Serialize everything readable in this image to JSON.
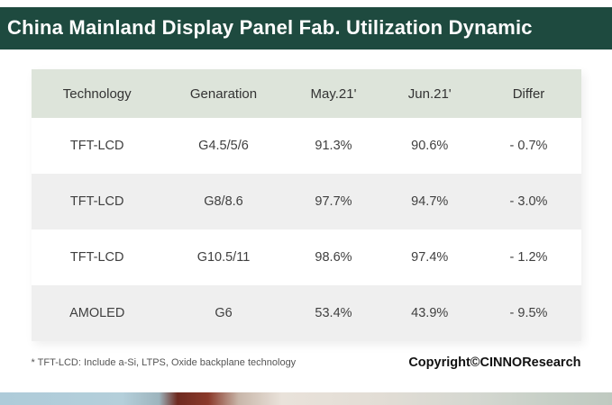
{
  "colors": {
    "title_bar_bg": "#1e4a3f",
    "title_text": "#ffffff",
    "header_row_bg": "#dde4da",
    "alt_row_bg": "#efefef",
    "body_text": "#3f3f3f"
  },
  "title": "China Mainland Display Panel Fab. Utilization Dynamic",
  "table": {
    "headers": [
      "Technology",
      "Genaration",
      "May.21'",
      "Jun.21'",
      "Differ"
    ],
    "rows": [
      [
        "TFT-LCD",
        "G4.5/5/6",
        "91.3%",
        "90.6%",
        "- 0.7%"
      ],
      [
        "TFT-LCD",
        "G8/8.6",
        "97.7%",
        "94.7%",
        "- 3.0%"
      ],
      [
        "TFT-LCD",
        "G10.5/11",
        "98.6%",
        "97.4%",
        "- 1.2%"
      ],
      [
        "AMOLED",
        "G6",
        "53.4%",
        "43.9%",
        "- 9.5%"
      ]
    ]
  },
  "footer": {
    "note": "* TFT-LCD: Include a-Si, LTPS, Oxide backplane technology",
    "copyright": "Copyright©CINNOResearch"
  },
  "chart_data": {
    "type": "table",
    "title": "China Mainland Display Panel Fab. Utilization Dynamic",
    "columns": [
      "Technology",
      "Genaration",
      "May.21'",
      "Jun.21'",
      "Differ"
    ],
    "rows": [
      {
        "technology": "TFT-LCD",
        "generation": "G4.5/5/6",
        "may_21": 91.3,
        "jun_21": 90.6,
        "differ": -0.7
      },
      {
        "technology": "TFT-LCD",
        "generation": "G8/8.6",
        "may_21": 97.7,
        "jun_21": 94.7,
        "differ": -3.0
      },
      {
        "technology": "TFT-LCD",
        "generation": "G10.5/11",
        "may_21": 98.6,
        "jun_21": 97.4,
        "differ": -1.2
      },
      {
        "technology": "AMOLED",
        "generation": "G6",
        "may_21": 53.4,
        "jun_21": 43.9,
        "differ": -9.5
      }
    ],
    "units": "percent utilization",
    "footnote": "* TFT-LCD: Include a-Si, LTPS, Oxide backplane technology",
    "source": "Copyright©CINNOResearch"
  }
}
